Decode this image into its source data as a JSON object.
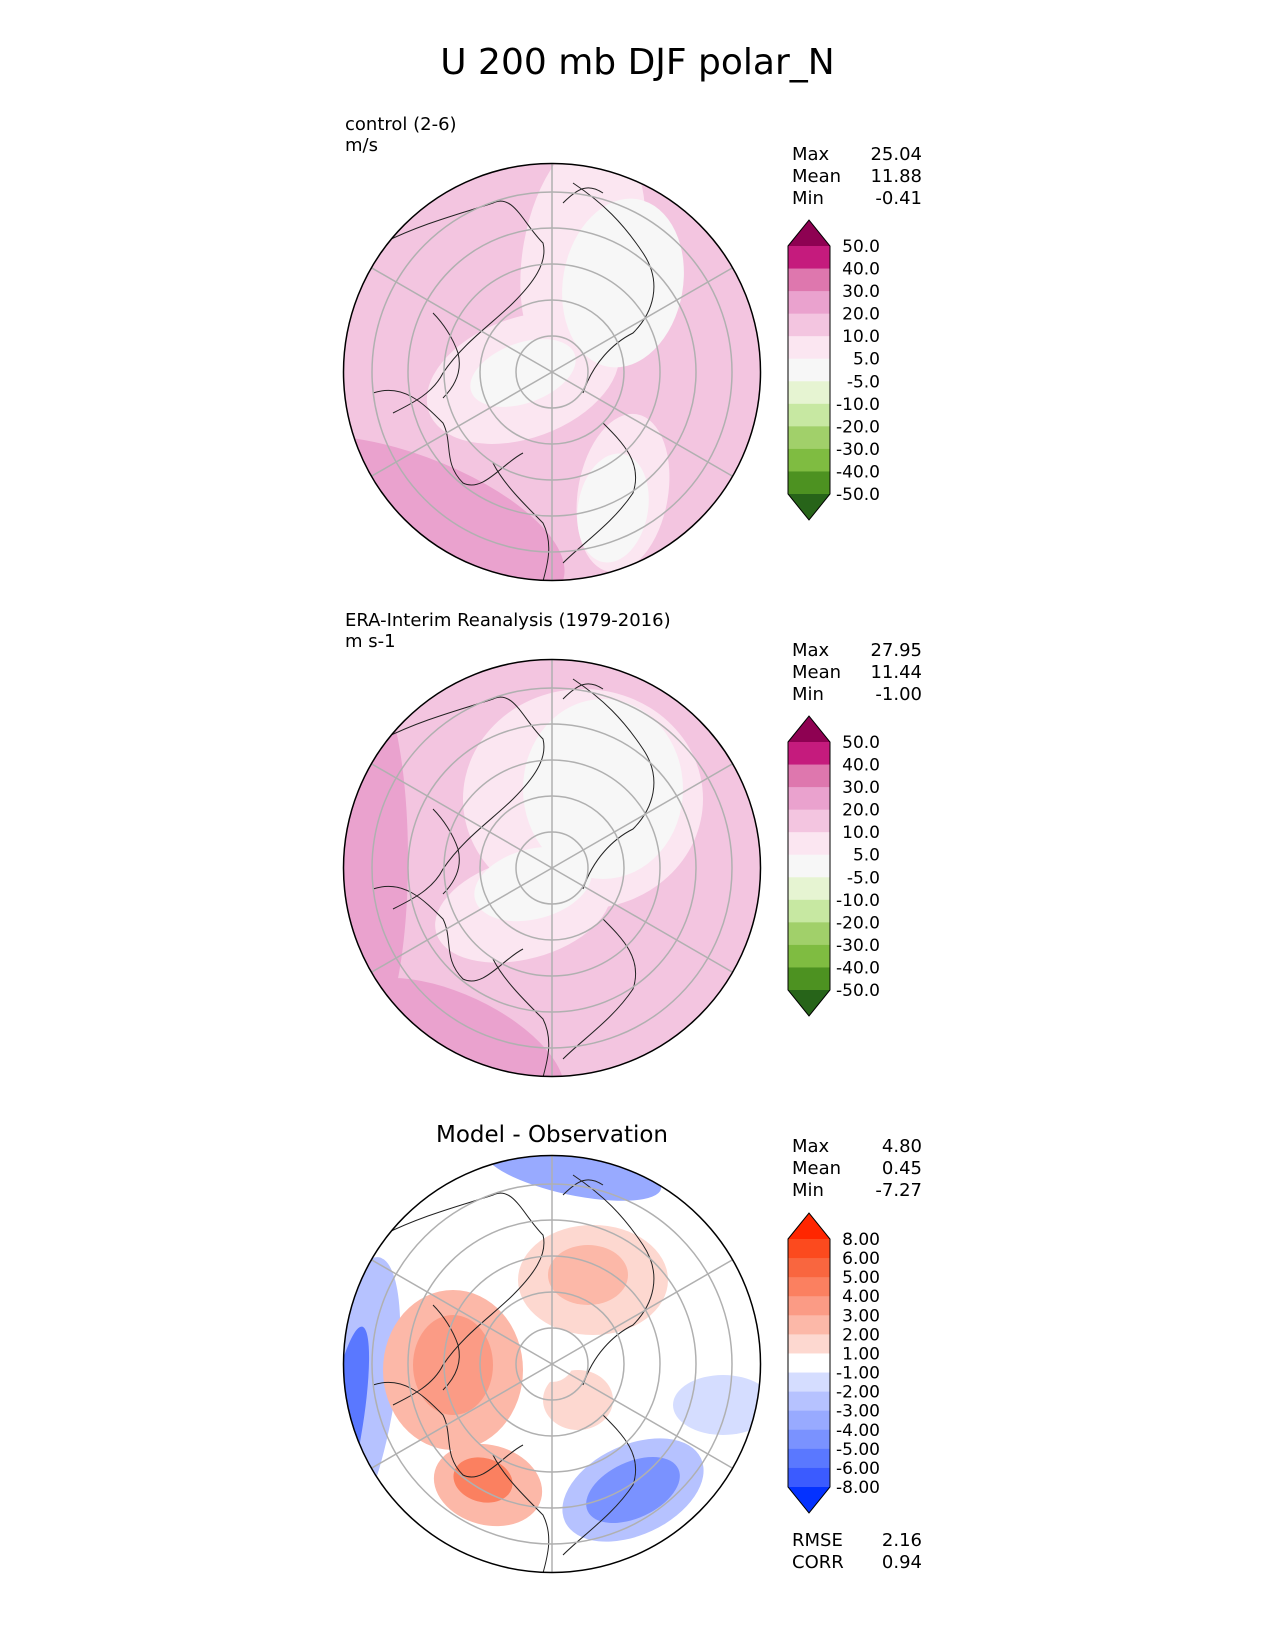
{
  "title": "U 200 mb DJF polar_N",
  "panels": [
    {
      "id": "test",
      "name_line": "control (2-6)",
      "units_line": "m/s",
      "stats": [
        {
          "label": "Max",
          "value": "25.04"
        },
        {
          "label": "Mean",
          "value": "11.88"
        },
        {
          "label": "Min",
          "value": "-0.41"
        }
      ],
      "colorbar": {
        "colors": [
          "#276419",
          "#4d9221",
          "#7fbc41",
          "#a1d06a",
          "#c7e8a2",
          "#e6f4d2",
          "#f7f7f7",
          "#fbe6f1",
          "#f3c5e0",
          "#eaa2ce",
          "#de77ae",
          "#c51b7d",
          "#8e0152"
        ],
        "labels": [
          "50.0",
          "40.0",
          "30.0",
          "20.0",
          "10.0",
          "5.0",
          "-5.0",
          "-10.0",
          "-20.0",
          "-30.0",
          "-40.0",
          "-50.0"
        ]
      }
    },
    {
      "id": "reference",
      "name_line": "ERA-Interim Reanalysis (1979-2016)",
      "units_line": "m s-1",
      "stats": [
        {
          "label": "Max",
          "value": "27.95"
        },
        {
          "label": "Mean",
          "value": "11.44"
        },
        {
          "label": "Min",
          "value": "-1.00"
        }
      ],
      "colorbar": {
        "colors": [
          "#276419",
          "#4d9221",
          "#7fbc41",
          "#a1d06a",
          "#c7e8a2",
          "#e6f4d2",
          "#f7f7f7",
          "#fbe6f1",
          "#f3c5e0",
          "#eaa2ce",
          "#de77ae",
          "#c51b7d",
          "#8e0152"
        ],
        "labels": [
          "50.0",
          "40.0",
          "30.0",
          "20.0",
          "10.0",
          "5.0",
          "-5.0",
          "-10.0",
          "-20.0",
          "-30.0",
          "-40.0",
          "-50.0"
        ]
      }
    },
    {
      "id": "diff",
      "heading": "Model - Observation",
      "stats": [
        {
          "label": "Max",
          "value": "4.80"
        },
        {
          "label": "Mean",
          "value": "0.45"
        },
        {
          "label": "Min",
          "value": "-7.27"
        }
      ],
      "extra_stats": [
        {
          "label": "RMSE",
          "value": "2.16"
        },
        {
          "label": "CORR",
          "value": "0.94"
        }
      ],
      "colorbar": {
        "colors": [
          "#0432ff",
          "#3b5bff",
          "#5a78ff",
          "#7a92ff",
          "#98aaff",
          "#b6c2ff",
          "#d5ddff",
          "#ffffff",
          "#fdd8d0",
          "#fcb8a8",
          "#fb9b85",
          "#fb8060",
          "#f9663f",
          "#fc4a1e",
          "#ff2600"
        ],
        "labels": [
          "8.00",
          "6.00",
          "5.00",
          "4.00",
          "3.00",
          "2.00",
          "1.00",
          "-1.00",
          "-2.00",
          "-3.00",
          "-4.00",
          "-5.00",
          "-6.00",
          "-8.00"
        ]
      }
    }
  ]
}
